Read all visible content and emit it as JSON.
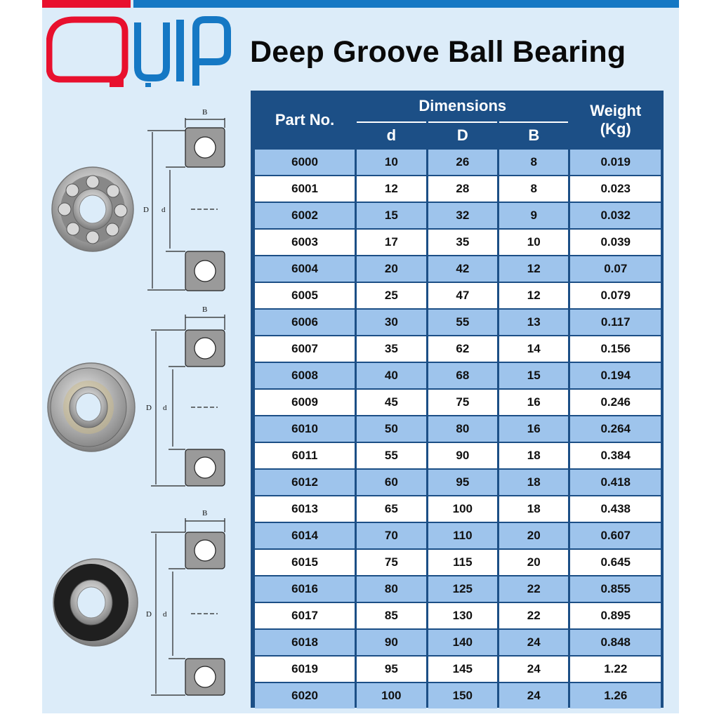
{
  "brand": {
    "logo_text": "QUIP"
  },
  "title": "Deep Groove Ball Bearing",
  "table": {
    "headers": {
      "part": "Part No.",
      "dimensions": "Dimensions",
      "d": "d",
      "D": "D",
      "B": "B",
      "weight_line1": "Weight",
      "weight_line2": "(Kg)"
    },
    "rows": [
      [
        "6000",
        "10",
        "26",
        "8",
        "0.019"
      ],
      [
        "6001",
        "12",
        "28",
        "8",
        "0.023"
      ],
      [
        "6002",
        "15",
        "32",
        "9",
        "0.032"
      ],
      [
        "6003",
        "17",
        "35",
        "10",
        "0.039"
      ],
      [
        "6004",
        "20",
        "42",
        "12",
        "0.07"
      ],
      [
        "6005",
        "25",
        "47",
        "12",
        "0.079"
      ],
      [
        "6006",
        "30",
        "55",
        "13",
        "0.117"
      ],
      [
        "6007",
        "35",
        "62",
        "14",
        "0.156"
      ],
      [
        "6008",
        "40",
        "68",
        "15",
        "0.194"
      ],
      [
        "6009",
        "45",
        "75",
        "16",
        "0.246"
      ],
      [
        "6010",
        "50",
        "80",
        "16",
        "0.264"
      ],
      [
        "6011",
        "55",
        "90",
        "18",
        "0.384"
      ],
      [
        "6012",
        "60",
        "95",
        "18",
        "0.418"
      ],
      [
        "6013",
        "65",
        "100",
        "18",
        "0.438"
      ],
      [
        "6014",
        "70",
        "110",
        "20",
        "0.607"
      ],
      [
        "6015",
        "75",
        "115",
        "20",
        "0.645"
      ],
      [
        "6016",
        "80",
        "125",
        "22",
        "0.855"
      ],
      [
        "6017",
        "85",
        "130",
        "22",
        "0.895"
      ],
      [
        "6018",
        "90",
        "140",
        "24",
        "0.848"
      ],
      [
        "6019",
        "95",
        "145",
        "24",
        "1.22"
      ],
      [
        "6020",
        "100",
        "150",
        "24",
        "1.26"
      ]
    ]
  },
  "diagram_labels": {
    "B": "B",
    "D": "D",
    "d": "d"
  },
  "colors": {
    "brand_red": "#e8102e",
    "brand_blue": "#1578c4",
    "header_navy": "#1c4f86",
    "row_blue": "#9ec4ec"
  }
}
